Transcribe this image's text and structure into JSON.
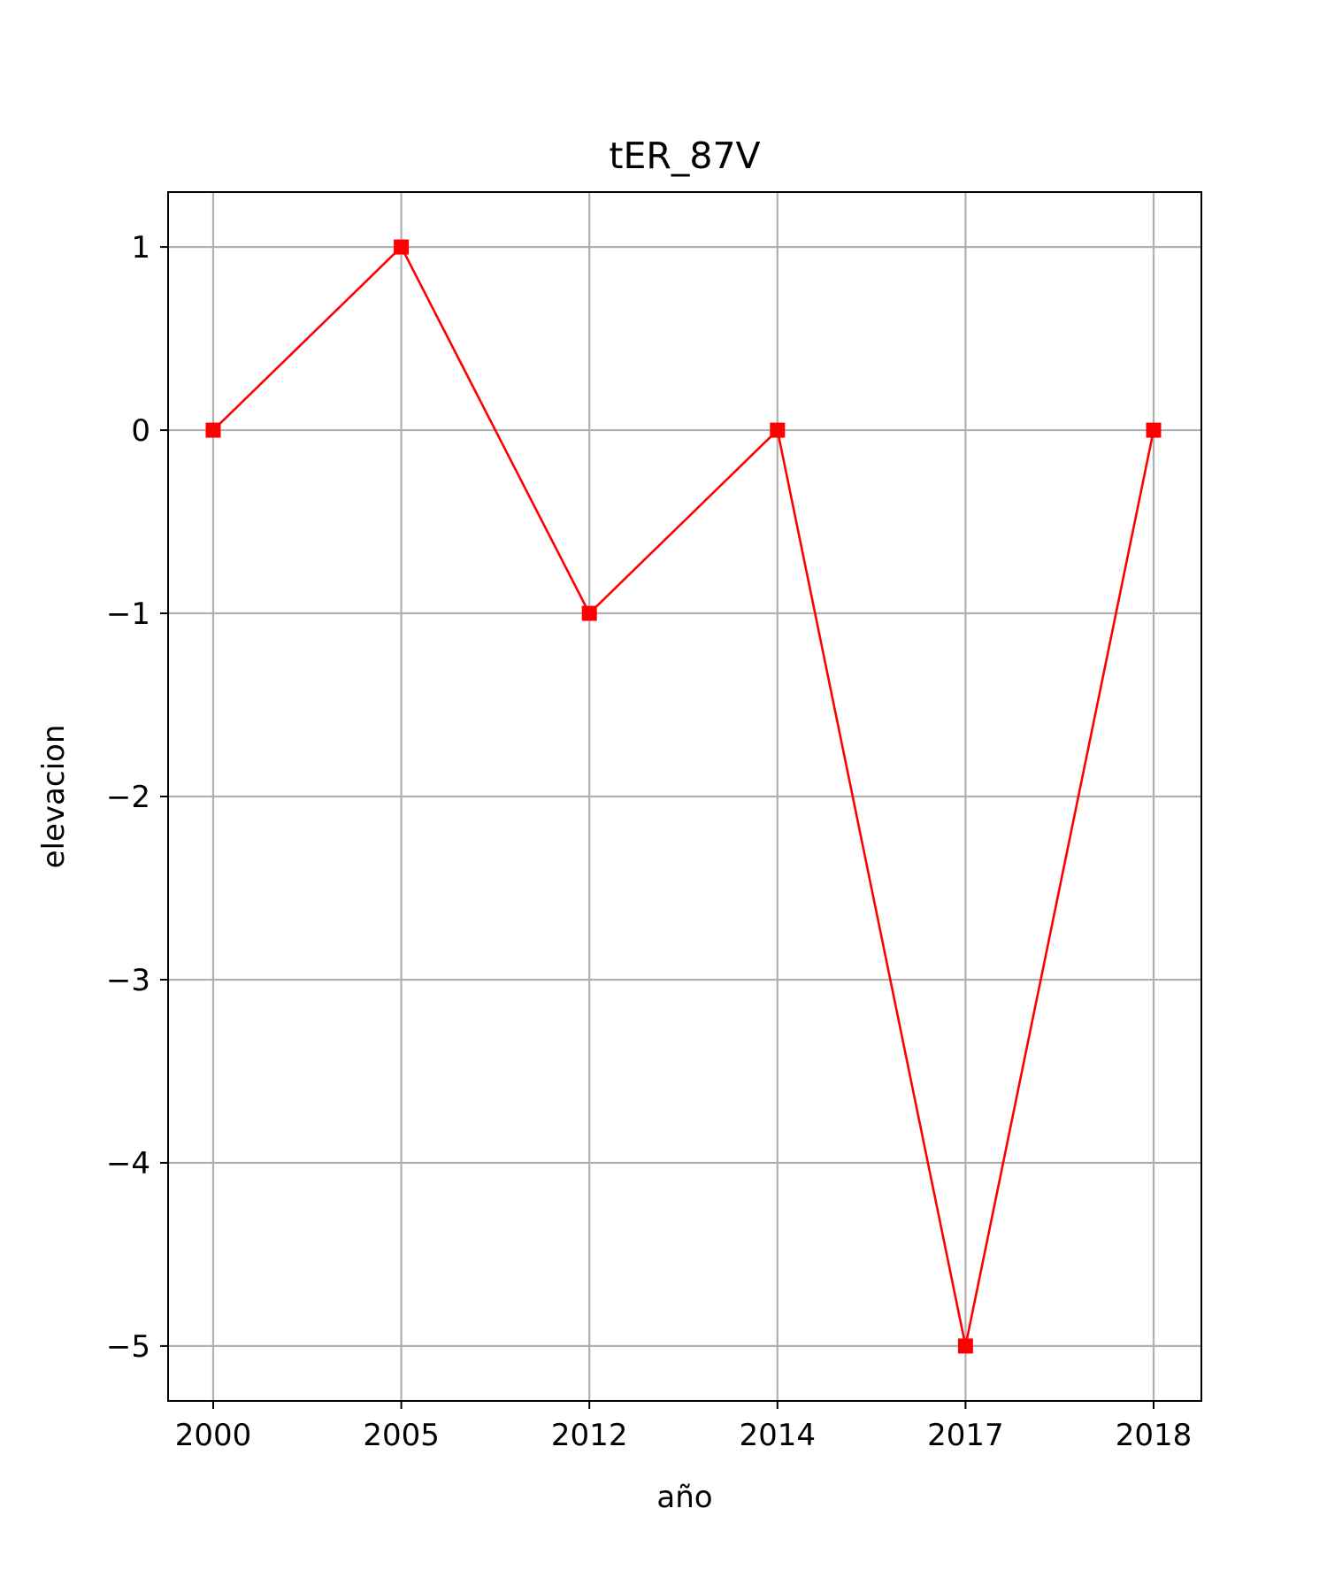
{
  "chart_data": {
    "type": "line",
    "title": "tER_87V",
    "xlabel": "año",
    "ylabel": "elevacion",
    "categories": [
      "2000",
      "2005",
      "2012",
      "2014",
      "2017",
      "2018"
    ],
    "series": [
      {
        "values": [
          0,
          1,
          -1,
          0,
          -5,
          0
        ],
        "color": "#ff0000",
        "marker": "square"
      }
    ],
    "yticks": [
      1,
      0,
      -1,
      -2,
      -3,
      -4,
      -5
    ],
    "ytick_labels": [
      "1",
      "0",
      "−1",
      "−2",
      "−3",
      "−4",
      "−5"
    ],
    "ylim": [
      -5.3,
      1.3
    ],
    "grid": true,
    "legend": false
  }
}
